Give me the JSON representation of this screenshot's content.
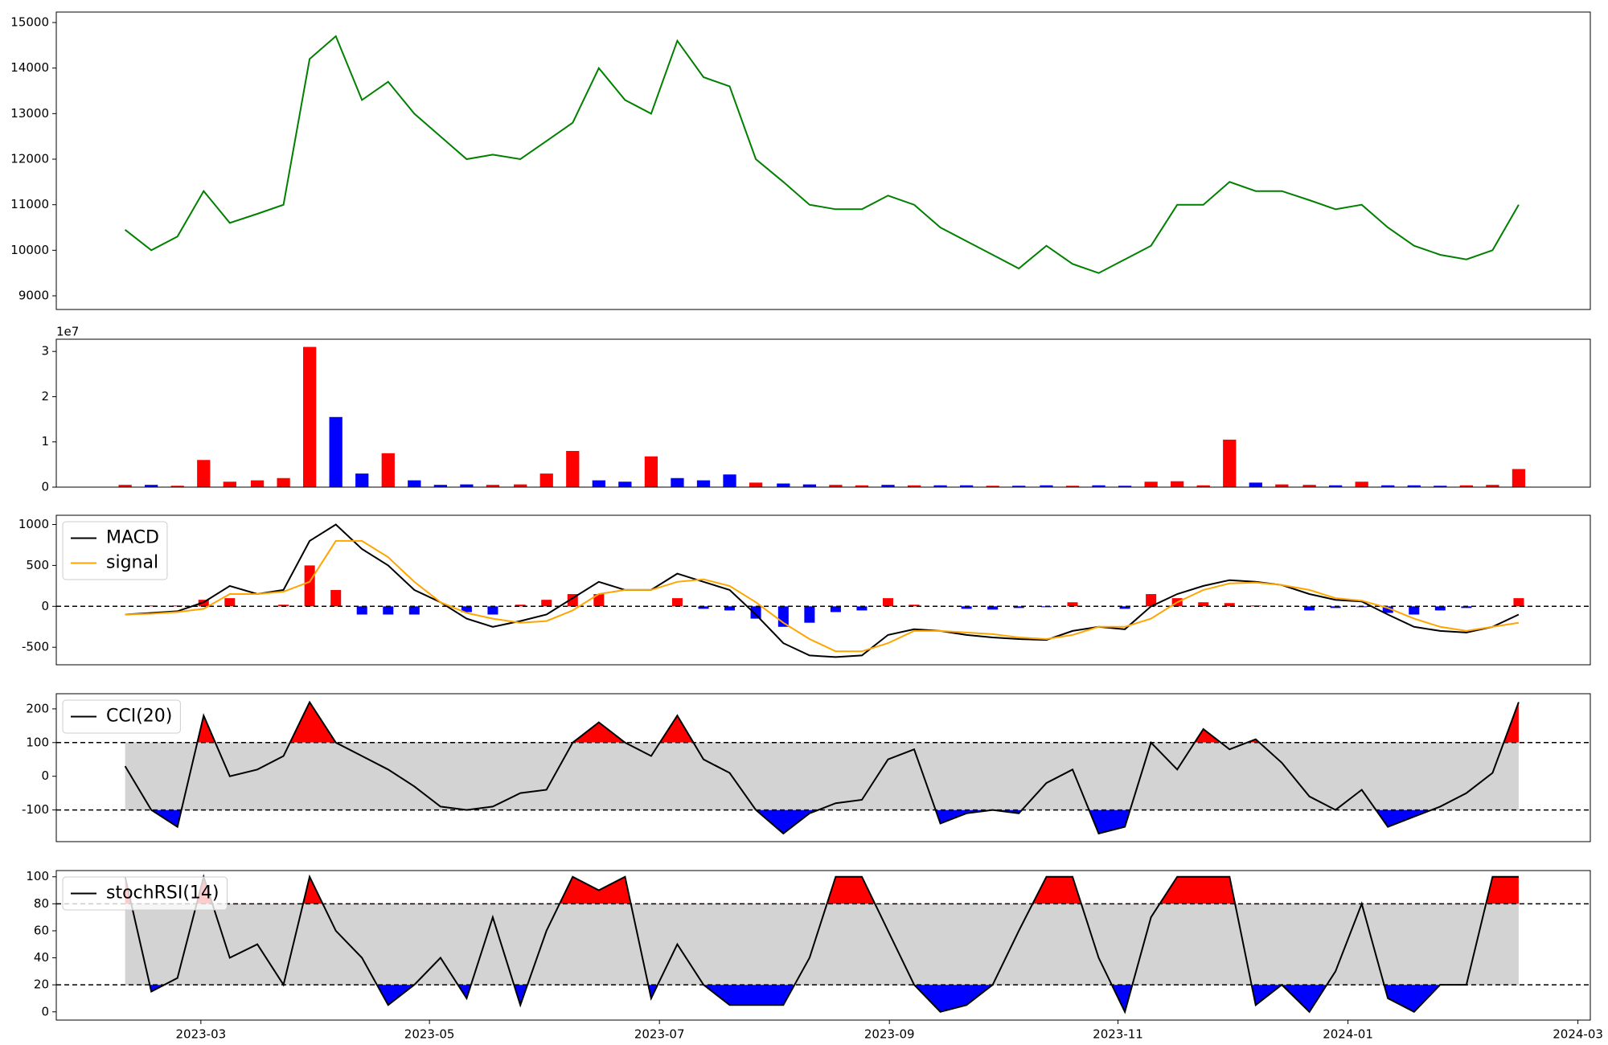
{
  "chart_data": [
    {
      "type": "line",
      "x": [
        2023.112,
        2023.131,
        2023.15,
        2023.169,
        2023.188,
        2023.208,
        2023.227,
        2023.246,
        2023.265,
        2023.284,
        2023.303,
        2023.322,
        2023.341,
        2023.36,
        2023.379,
        2023.399,
        2023.418,
        2023.437,
        2023.456,
        2023.475,
        2023.494,
        2023.513,
        2023.532,
        2023.551,
        2023.57,
        2023.59,
        2023.609,
        2023.628,
        2023.647,
        2023.666,
        2023.685,
        2023.704,
        2023.723,
        2023.742,
        2023.761,
        2023.781,
        2023.8,
        2023.819,
        2023.838,
        2023.857,
        2023.876,
        2023.895,
        2023.914,
        2023.933,
        2023.952,
        2023.972,
        2023.991,
        2024.01,
        2024.029,
        2024.048,
        2024.067,
        2024.086,
        2024.105,
        2024.124
      ],
      "series": [
        {
          "color": "#008000",
          "values": [
            10450,
            10000,
            10300,
            11300,
            10600,
            10800,
            11000,
            14200,
            14700,
            13300,
            13700,
            13000,
            12500,
            12000,
            12100,
            12000,
            12400,
            12800,
            14000,
            13300,
            13000,
            14600,
            13800,
            13600,
            12000,
            11500,
            11000,
            10900,
            10900,
            11200,
            11000,
            10500,
            10200,
            9900,
            9600,
            10100,
            9700,
            9500,
            9800,
            10100,
            11000,
            11000,
            11500,
            11300,
            11300,
            11100,
            10900,
            11000,
            10500,
            10100,
            9900,
            9800,
            10000,
            11000
          ]
        }
      ],
      "ylim": [
        8700,
        15230
      ],
      "yticks": [
        9000,
        10000,
        11000,
        12000,
        13000,
        14000,
        15000
      ]
    },
    {
      "type": "bar",
      "offset_label": "1e7",
      "values": [
        500000,
        500000,
        300000,
        6000000,
        1200000,
        1500000,
        2000000,
        31000000,
        15500000,
        3000000,
        7500000,
        1500000,
        500000,
        600000,
        500000,
        600000,
        3000000,
        8000000,
        1500000,
        1200000,
        6800000,
        2000000,
        1500000,
        2800000,
        1000000,
        800000,
        600000,
        500000,
        400000,
        500000,
        400000,
        400000,
        400000,
        300000,
        300000,
        400000,
        300000,
        400000,
        300000,
        1200000,
        1300000,
        400000,
        10500000,
        1000000,
        600000,
        500000,
        400000,
        1200000,
        400000,
        400000,
        300000,
        400000,
        500000,
        4000000
      ],
      "colors": [
        "red",
        "blue",
        "red",
        "red",
        "red",
        "red",
        "red",
        "red",
        "blue",
        "blue",
        "red",
        "blue",
        "blue",
        "blue",
        "red",
        "red",
        "red",
        "red",
        "blue",
        "blue",
        "red",
        "blue",
        "blue",
        "blue",
        "red",
        "blue",
        "blue",
        "red",
        "red",
        "blue",
        "red",
        "blue",
        "blue",
        "red",
        "blue",
        "blue",
        "red",
        "blue",
        "blue",
        "red",
        "red",
        "red",
        "red",
        "blue",
        "red",
        "red",
        "blue",
        "red",
        "blue",
        "blue",
        "blue",
        "red",
        "red",
        "red"
      ],
      "ylim": [
        0,
        32700000
      ],
      "yticks": [
        0,
        {
          "value": 10000000,
          "label": "1"
        },
        {
          "value": 20000000,
          "label": "2"
        },
        {
          "value": 30000000,
          "label": "3"
        }
      ]
    },
    {
      "type": "macd",
      "series": [
        {
          "name": "MACD",
          "color": "#000000",
          "values": [
            -100,
            -80,
            -60,
            50,
            250,
            150,
            200,
            800,
            1000,
            700,
            500,
            200,
            50,
            -150,
            -250,
            -180,
            -100,
            100,
            300,
            200,
            200,
            400,
            300,
            200,
            -100,
            -450,
            -600,
            -620,
            -600,
            -350,
            -280,
            -300,
            -350,
            -380,
            -400,
            -410,
            -300,
            -250,
            -280,
            0,
            150,
            250,
            320,
            300,
            260,
            150,
            80,
            60,
            -100,
            -250,
            -300,
            -320,
            -250,
            -100
          ]
        },
        {
          "name": "signal",
          "color": "#ffa500",
          "values": [
            -100,
            -90,
            -70,
            -30,
            150,
            150,
            180,
            300,
            800,
            800,
            600,
            300,
            50,
            -80,
            -150,
            -200,
            -180,
            -50,
            150,
            200,
            200,
            300,
            330,
            250,
            50,
            -200,
            -400,
            -550,
            -550,
            -450,
            -300,
            -300,
            -320,
            -340,
            -380,
            -400,
            -350,
            -250,
            -250,
            -150,
            50,
            200,
            280,
            290,
            260,
            200,
            100,
            70,
            -20,
            -150,
            -250,
            -300,
            -250,
            -200
          ]
        }
      ],
      "histogram": {
        "values": [
          0,
          10,
          10,
          80,
          100,
          0,
          20,
          500,
          200,
          -100,
          -100,
          -100,
          0,
          -70,
          -100,
          20,
          80,
          150,
          150,
          0,
          0,
          100,
          -30,
          -50,
          -150,
          -250,
          -200,
          -70,
          -50,
          100,
          20,
          0,
          -30,
          -40,
          -20,
          -10,
          50,
          0,
          -30,
          150,
          100,
          50,
          40,
          10,
          0,
          -50,
          -20,
          -10,
          -80,
          -100,
          -50,
          -20,
          0,
          100
        ],
        "positive_color": "red",
        "negative_color": "blue"
      },
      "reference_lines": [
        0
      ],
      "ylim": [
        -714,
        1113
      ],
      "yticks": [
        -500,
        0,
        500,
        1000
      ],
      "legend": "upper left"
    },
    {
      "type": "oscillator",
      "series": [
        {
          "name": "CCI(20)",
          "color": "#000000",
          "values": [
            30,
            -100,
            -150,
            180,
            0,
            20,
            60,
            220,
            100,
            60,
            20,
            -30,
            -90,
            -100,
            -90,
            -50,
            -40,
            100,
            160,
            100,
            60,
            180,
            50,
            10,
            -100,
            -170,
            -110,
            -80,
            -70,
            50,
            80,
            -140,
            -110,
            -100,
            -110,
            -20,
            20,
            -170,
            -150,
            100,
            20,
            140,
            80,
            110,
            40,
            -60,
            -100,
            -40,
            -150,
            -120,
            -90,
            -50,
            10,
            220
          ]
        }
      ],
      "thresholds": [
        100,
        -100
      ],
      "above_color": "red",
      "below_color": "blue",
      "band_color": "#d3d3d3",
      "ylim": [
        -194,
        245
      ],
      "yticks": [
        -100,
        0,
        100,
        200
      ],
      "legend": "upper left"
    },
    {
      "type": "oscillator",
      "series": [
        {
          "name": "stochRSI(14)",
          "color": "#000000",
          "values": [
            100,
            15,
            25,
            100,
            40,
            50,
            20,
            100,
            60,
            40,
            5,
            20,
            40,
            10,
            70,
            5,
            60,
            100,
            90,
            100,
            10,
            50,
            20,
            5,
            5,
            5,
            40,
            100,
            100,
            60,
            20,
            0,
            5,
            20,
            60,
            100,
            100,
            40,
            0,
            70,
            100,
            100,
            100,
            5,
            20,
            0,
            30,
            80,
            10,
            0,
            20,
            20,
            100,
            100
          ]
        }
      ],
      "thresholds": [
        80,
        20
      ],
      "above_color": "red",
      "below_color": "blue",
      "band_color": "#d3d3d3",
      "ylim": [
        -6.1,
        104.6
      ],
      "yticks": [
        0,
        20,
        40,
        60,
        80,
        100
      ],
      "legend": "upper left",
      "xlim": [
        2023.062,
        2024.176
      ],
      "xticks": [
        {
          "value": 2023.167,
          "label": "2023-03"
        },
        {
          "value": 2023.333,
          "label": "2023-05"
        },
        {
          "value": 2023.5,
          "label": "2023-07"
        },
        {
          "value": 2023.667,
          "label": "2023-09"
        },
        {
          "value": 2023.833,
          "label": "2023-11"
        },
        {
          "value": 2024.0,
          "label": "2024-01"
        },
        {
          "value": 2024.167,
          "label": "2024-03"
        }
      ]
    }
  ]
}
